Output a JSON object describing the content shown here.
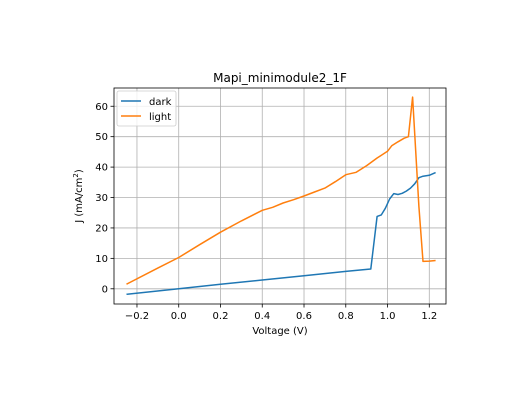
{
  "chart_data": {
    "type": "line",
    "title": "Mapi_minimodule2_1F",
    "xlabel": "Voltage (V)",
    "ylabel_main": "J (mA/cm",
    "ylabel_sup": "2",
    "ylabel_end": ")",
    "xlim": [
      -0.31,
      1.28
    ],
    "ylim": [
      -5,
      66
    ],
    "xticks": [
      -0.2,
      0.0,
      0.2,
      0.4,
      0.6,
      0.8,
      1.0,
      1.2
    ],
    "xtick_labels": [
      "−0.2",
      "0.0",
      "0.2",
      "0.4",
      "0.6",
      "0.8",
      "1.0",
      "1.2"
    ],
    "yticks": [
      0,
      10,
      20,
      30,
      40,
      50,
      60
    ],
    "ytick_labels": [
      "0",
      "10",
      "20",
      "30",
      "40",
      "50",
      "60"
    ],
    "grid": true,
    "legend_position": "upper-left",
    "series": [
      {
        "name": "dark",
        "color": "#1f77b4",
        "x": [
          -0.25,
          0.0,
          0.2,
          0.4,
          0.6,
          0.8,
          0.92,
          0.95,
          0.97,
          0.99,
          1.01,
          1.03,
          1.05,
          1.07,
          1.09,
          1.11,
          1.13,
          1.15,
          1.17,
          1.2,
          1.23
        ],
        "y": [
          -1.8,
          0.0,
          1.5,
          2.9,
          4.3,
          5.7,
          6.5,
          23.8,
          24.3,
          26.5,
          29.5,
          31.3,
          31.0,
          31.4,
          32.1,
          33.1,
          34.5,
          36.5,
          37.0,
          37.3,
          38.2
        ]
      },
      {
        "name": "light",
        "color": "#ff7f0e",
        "x": [
          -0.25,
          -0.1,
          0.0,
          0.1,
          0.2,
          0.3,
          0.4,
          0.45,
          0.5,
          0.55,
          0.6,
          0.65,
          0.7,
          0.75,
          0.8,
          0.85,
          0.9,
          0.95,
          1.0,
          1.02,
          1.05,
          1.08,
          1.1,
          1.12,
          1.15,
          1.17,
          1.2,
          1.23
        ],
        "y": [
          1.5,
          6.8,
          10.3,
          14.5,
          18.6,
          22.3,
          25.8,
          26.8,
          28.2,
          29.3,
          30.5,
          31.8,
          33.1,
          35.2,
          37.5,
          38.3,
          40.5,
          43.0,
          45.2,
          47.0,
          48.3,
          49.5,
          50.0,
          63.0,
          27.0,
          9.0,
          9.1,
          9.3
        ]
      }
    ]
  }
}
